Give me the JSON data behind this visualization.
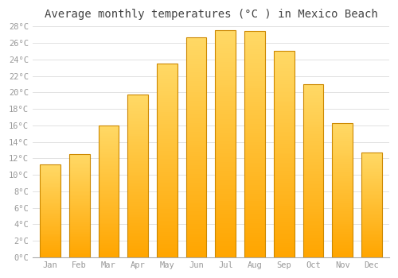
{
  "title": "Average monthly temperatures (°C ) in Mexico Beach",
  "months": [
    "Jan",
    "Feb",
    "Mar",
    "Apr",
    "May",
    "Jun",
    "Jul",
    "Aug",
    "Sep",
    "Oct",
    "Nov",
    "Dec"
  ],
  "values": [
    11.3,
    12.5,
    16.0,
    19.7,
    23.5,
    26.7,
    27.5,
    27.4,
    25.0,
    21.0,
    16.3,
    12.7
  ],
  "bar_color_top": "#FFD966",
  "bar_color_bottom": "#FFA500",
  "bar_edge_color": "#CC8800",
  "background_color": "#FFFFFF",
  "grid_color": "#DDDDDD",
  "text_color": "#999999",
  "title_color": "#444444",
  "ylim": [
    0,
    28
  ],
  "yticks": [
    0,
    2,
    4,
    6,
    8,
    10,
    12,
    14,
    16,
    18,
    20,
    22,
    24,
    26,
    28
  ],
  "title_fontsize": 10,
  "tick_fontsize": 7.5
}
